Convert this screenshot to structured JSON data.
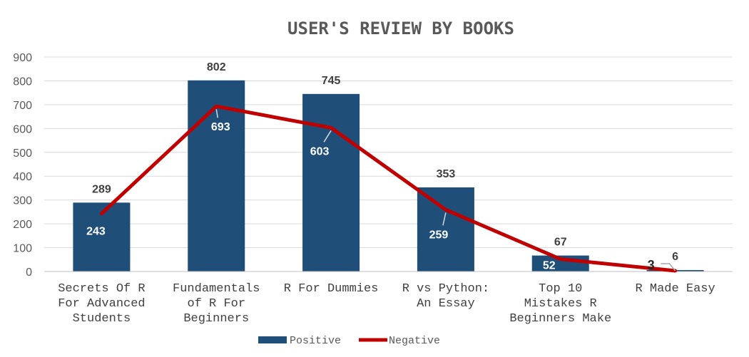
{
  "chart_data": {
    "type": "bar",
    "title": "USER'S REVIEW BY BOOKS",
    "xlabel": "",
    "ylabel": "",
    "ylim": [
      0,
      900
    ],
    "yticks": [
      0,
      100,
      200,
      300,
      400,
      500,
      600,
      700,
      800,
      900
    ],
    "grid": true,
    "legend_position": "bottom",
    "categories": [
      [
        "Secrets Of R",
        "For Advanced",
        "Students"
      ],
      [
        "Fundamentals",
        "of R For",
        "Beginners"
      ],
      [
        "R For Dummies"
      ],
      [
        "R vs Python:",
        "An Essay"
      ],
      [
        "Top 10",
        "Mistakes R",
        "Beginners Make"
      ],
      [
        "R Made Easy"
      ]
    ],
    "series": [
      {
        "name": "Positive",
        "type": "bar",
        "color": "#1f4e79",
        "values": [
          289,
          802,
          745,
          353,
          67,
          6
        ]
      },
      {
        "name": "Negative",
        "type": "line",
        "color": "#c00000",
        "values": [
          243,
          693,
          603,
          259,
          52,
          3
        ]
      }
    ]
  }
}
